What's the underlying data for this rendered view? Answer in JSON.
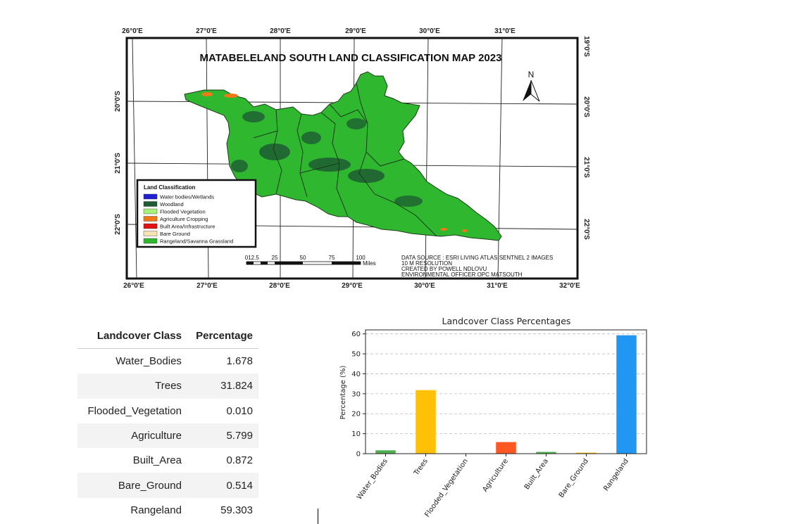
{
  "map": {
    "title": "MATABELELAND SOUTH LAND CLASSIFICATION MAP 2023",
    "north_label": "N",
    "lon_ticks_top": [
      "26°0'E",
      "27°0'E",
      "28°0'E",
      "29°0'E",
      "30°0'E",
      "31°0'E"
    ],
    "lon_ticks_bottom": [
      "26°0'E",
      "27°0'E",
      "28°0'E",
      "29°0'E",
      "30°0'E",
      "31°0'E",
      "32°0'E"
    ],
    "lat_ticks_left": [
      "20°0'S",
      "21°0'S",
      "22°0'S"
    ],
    "lat_ticks_right": [
      "19°0'S",
      "20°0'S",
      "21°0'S",
      "22°0'S"
    ],
    "legend": {
      "title": "Land Classification",
      "items": [
        {
          "label": "Water bodies/Wetlands",
          "color": "#1f1fd6"
        },
        {
          "label": "Woodland",
          "color": "#1e5b33"
        },
        {
          "label": "Flooded Vegetation",
          "color": "#a8f07a"
        },
        {
          "label": "Agriculture Cropping",
          "color": "#f07818"
        },
        {
          "label": "Built Area/Infrastructure",
          "color": "#e01212"
        },
        {
          "label": "Bare Ground",
          "color": "#f7e3b5"
        },
        {
          "label": "Rangeland/Savanna Grassland",
          "color": "#2fb82f"
        }
      ]
    },
    "scale_bar": {
      "labels": [
        "0",
        "12.5",
        "25",
        "50",
        "75",
        "100"
      ],
      "unit": "Miles"
    },
    "credits": [
      "DATA SOURCE : ESRI LIVING ATLAS SENTNEL 2 IMAGES",
      "10 M RESOLUTION",
      "CREATED BY POWELL NDLOVU",
      "ENVIRONMENTAL OFFICER OPC MATSOUTH"
    ]
  },
  "table": {
    "headers": [
      "Landcover Class",
      "Percentage"
    ],
    "rows": [
      [
        "Water_Bodies",
        "1.678"
      ],
      [
        "Trees",
        "31.824"
      ],
      [
        "Flooded_Vegetation",
        "0.010"
      ],
      [
        "Agriculture",
        "5.799"
      ],
      [
        "Built_Area",
        "0.872"
      ],
      [
        "Bare_Ground",
        "0.514"
      ],
      [
        "Rangeland",
        "59.303"
      ]
    ]
  },
  "chart_data": {
    "type": "bar",
    "title": "Landcover Class Percentages",
    "xlabel": "",
    "ylabel": "Percentage (%)",
    "categories": [
      "Water_Bodies",
      "Trees",
      "Flooded_Vegetation",
      "Agriculture",
      "Built_Area",
      "Bare_Ground",
      "Rangeland"
    ],
    "values": [
      1.678,
      31.824,
      0.01,
      5.799,
      0.872,
      0.514,
      59.303
    ],
    "colors": [
      "#4caf50",
      "#ffc107",
      "#8bc34a",
      "#ff5722",
      "#4caf50",
      "#ffc107",
      "#2196f3"
    ],
    "ylim": [
      0,
      62
    ],
    "yticks": [
      0,
      10,
      20,
      30,
      40,
      50,
      60
    ],
    "grid": "horizontal dashed"
  }
}
